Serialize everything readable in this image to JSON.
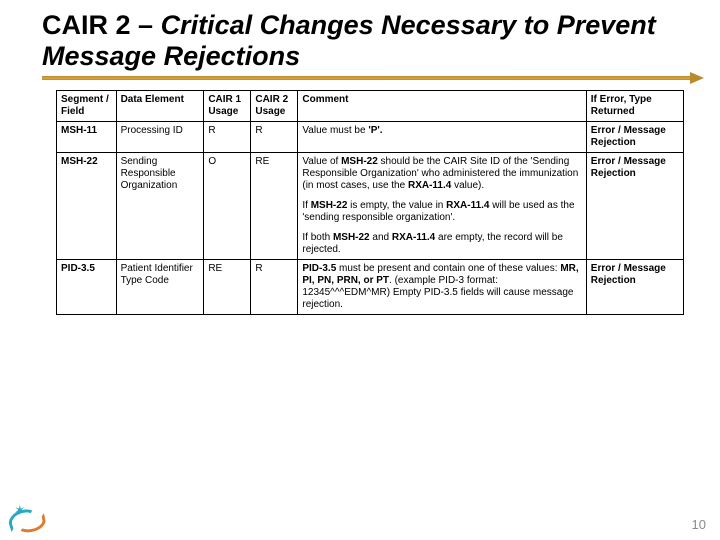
{
  "title": {
    "prefix": "CAIR 2 ",
    "dash": "– ",
    "italic": "Critical Changes Necessary to Prevent Message Rejections"
  },
  "headers": {
    "c0": "Segment / Field",
    "c1": "Data Element",
    "c2": "CAIR 1 Usage",
    "c3": "CAIR 2 Usage",
    "c4": "Comment",
    "c5": "If Error, Type Returned"
  },
  "rows": [
    {
      "seg": "MSH-11",
      "elem": "Processing ID",
      "u1": "R",
      "u2": "R",
      "comment_html": "Value must be <b>'P'.</b>",
      "err": "Error / Message Rejection"
    },
    {
      "seg": "MSH-22",
      "elem": "Sending Responsible Organization",
      "u1": "O",
      "u2": "RE",
      "comment_html": "<div class='para'>Value of <b>MSH-22</b> should be the CAIR Site ID of the 'Sending Responsible Organization' who administered the immunization (in most cases, use the <b>RXA-11.4</b> value).</div><div class='para'>If <b>MSH-22</b> is empty, the value in <b>RXA-11.4</b> will be used as the 'sending responsible organization'.</div><div class='para'>If both <b>MSH-22</b> and <b>RXA-11.4</b> are empty, the record will be rejected.</div>",
      "err": "Error / Message Rejection"
    },
    {
      "seg": "PID-3.5",
      "elem": "Patient Identifier Type Code",
      "u1": "RE",
      "u2": "R",
      "comment_html": "<b>PID-3.5</b> must be present and contain one of these values: <b>MR, PI, PN, PRN, or PT</b>. (example PID-3 format: 12345^^^EDM^MR) Empty PID-3.5 fields will cause message rejection.",
      "err": "Error / Message Rejection"
    }
  ],
  "page_number": "10",
  "colors": {
    "rule": "#b88a2c",
    "border": "#000000",
    "pagenum": "#8a8a8a",
    "logo_teal": "#2aa7c3",
    "logo_orange": "#e07a2c"
  }
}
